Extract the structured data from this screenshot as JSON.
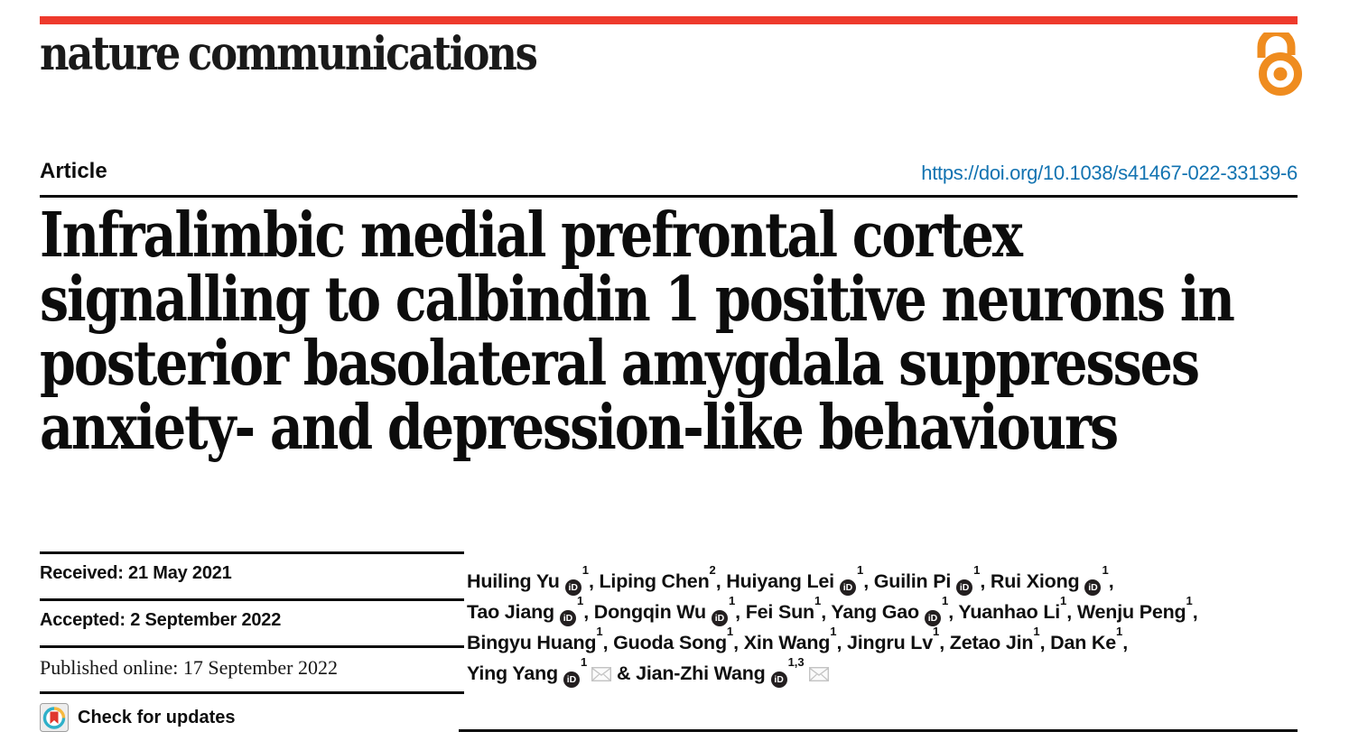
{
  "brand": {
    "journal": "nature communications",
    "bar_color": "#ee3a2c",
    "open_access_color": "#ef8c1f",
    "open_access_icon": "open-padlock"
  },
  "header": {
    "article_label": "Article",
    "doi": "https://doi.org/10.1038/s41467-022-33139-6",
    "doi_color": "#1273b1"
  },
  "title": {
    "lines": [
      "Infralimbic medial prefrontal cortex",
      "signalling to calbindin 1 positive neurons in",
      "posterior basolateral amygdala suppresses",
      "anxiety- and depression-like behaviours"
    ]
  },
  "dates": {
    "received": "Received: 21 May 2021",
    "accepted": "Accepted: 2 September 2022",
    "published": "Published online: 17 September 2022",
    "check_updates_label": "Check for updates",
    "crossmark_colors": {
      "ring_teal": "#2fb0c9",
      "ring_yellow": "#f6b93f",
      "bookmark_red": "#e0372e",
      "box_gray": "#ededed"
    }
  },
  "authors": {
    "orcid_icon_color": "#231f20",
    "envelope_icon_color": "#c3c3c3",
    "lines": [
      [
        {
          "name": "Huiling Yu",
          "orcid": true,
          "sup": "1",
          "sep": ", "
        },
        {
          "name": "Liping Chen",
          "orcid": false,
          "sup": "2",
          "sep": ", "
        },
        {
          "name": "Huiyang Lei",
          "orcid": true,
          "sup": "1",
          "sep": ", "
        },
        {
          "name": "Guilin Pi",
          "orcid": true,
          "sup": "1",
          "sep": ", "
        },
        {
          "name": "Rui Xiong",
          "orcid": true,
          "sup": "1",
          "sep": ","
        }
      ],
      [
        {
          "name": "Tao Jiang",
          "orcid": true,
          "sup": "1",
          "sep": ", "
        },
        {
          "name": "Dongqin Wu",
          "orcid": true,
          "sup": "1",
          "sep": ", "
        },
        {
          "name": "Fei Sun",
          "orcid": false,
          "sup": "1",
          "sep": ", "
        },
        {
          "name": "Yang Gao",
          "orcid": true,
          "sup": "1",
          "sep": ", "
        },
        {
          "name": "Yuanhao Li",
          "orcid": false,
          "sup": "1",
          "sep": ", "
        },
        {
          "name": "Wenju Peng",
          "orcid": false,
          "sup": "1",
          "sep": ","
        }
      ],
      [
        {
          "name": "Bingyu Huang",
          "orcid": false,
          "sup": "1",
          "sep": ", "
        },
        {
          "name": "Guoda Song",
          "orcid": false,
          "sup": "1",
          "sep": ", "
        },
        {
          "name": "Xin Wang",
          "orcid": false,
          "sup": "1",
          "sep": ", "
        },
        {
          "name": "Jingru Lv",
          "orcid": false,
          "sup": "1",
          "sep": ", "
        },
        {
          "name": "Zetao Jin",
          "orcid": false,
          "sup": "1",
          "sep": ", "
        },
        {
          "name": "Dan Ke",
          "orcid": false,
          "sup": "1",
          "sep": ","
        }
      ],
      [
        {
          "name": "Ying Yang",
          "orcid": true,
          "sup": "1",
          "envelope": true,
          "sep": " & "
        },
        {
          "name": "Jian-Zhi Wang",
          "orcid": true,
          "sup": "1,3",
          "envelope": true,
          "sep": ""
        }
      ]
    ]
  }
}
